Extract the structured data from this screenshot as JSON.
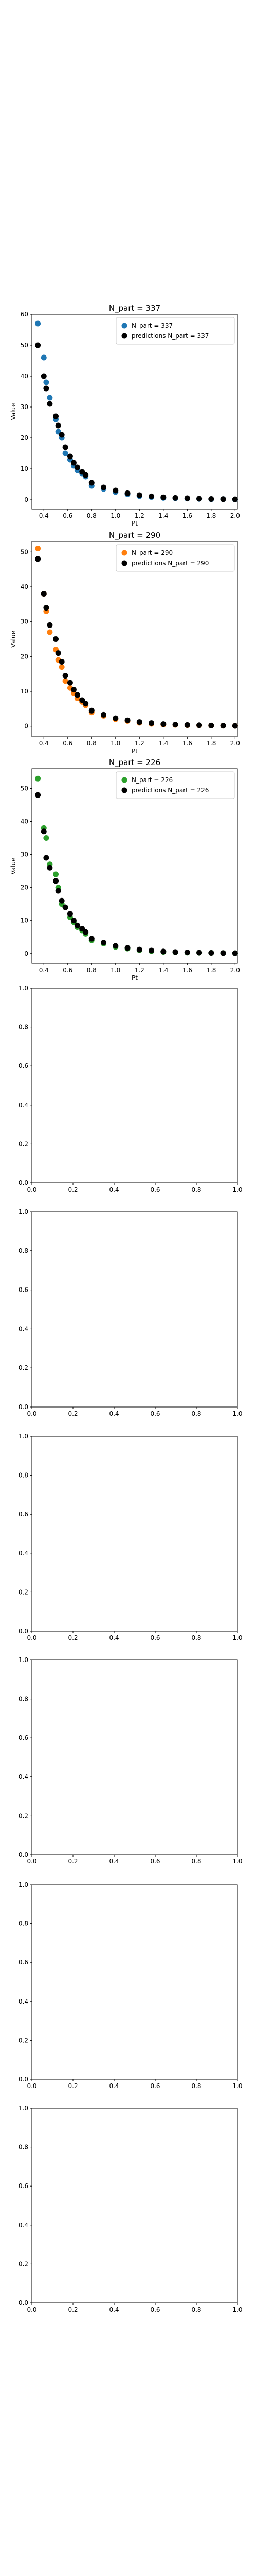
{
  "chart_data": [
    {
      "type": "scatter",
      "title": "N_part = 337",
      "xlabel": "Pt",
      "ylabel": "Value",
      "xlim": [
        0.3,
        2.02
      ],
      "ylim": [
        -3,
        60
      ],
      "xticks": [
        0.4,
        0.6,
        0.8,
        1.0,
        1.2,
        1.4,
        1.6,
        1.8,
        2.0
      ],
      "xtick_labels": [
        "0.4",
        "0.6",
        "0.8",
        "1.0",
        "1.2",
        "1.4",
        "1.6",
        "1.8",
        "2.0"
      ],
      "yticks": [
        0,
        10,
        20,
        30,
        40,
        50,
        60
      ],
      "ytick_labels": [
        "0",
        "10",
        "20",
        "30",
        "40",
        "50",
        "60"
      ],
      "legend": "top-right",
      "series": [
        {
          "name": "N_part = 337",
          "color": "#1f77b4",
          "x": [
            0.35,
            0.4,
            0.42,
            0.45,
            0.5,
            0.52,
            0.55,
            0.58,
            0.62,
            0.65,
            0.68,
            0.72,
            0.75,
            0.8,
            0.9,
            1.0,
            1.1,
            1.2,
            1.3,
            1.4,
            1.5,
            1.6,
            1.7,
            1.8,
            1.9,
            2.0
          ],
          "y": [
            57,
            46,
            38,
            33,
            26,
            22,
            20,
            15,
            13,
            11,
            9.5,
            8.5,
            7.5,
            4.5,
            3.5,
            2.5,
            1.8,
            1.2,
            0.9,
            0.6,
            0.5,
            0.4,
            0.3,
            0.2,
            0.2,
            0.1
          ]
        },
        {
          "name": "predictions N_part = 337",
          "color": "#000000",
          "x": [
            0.35,
            0.4,
            0.42,
            0.45,
            0.5,
            0.52,
            0.55,
            0.58,
            0.62,
            0.65,
            0.68,
            0.72,
            0.75,
            0.8,
            0.9,
            1.0,
            1.1,
            1.2,
            1.3,
            1.4,
            1.5,
            1.6,
            1.7,
            1.8,
            1.9,
            2.0
          ],
          "y": [
            50,
            40,
            36,
            31,
            27,
            24,
            21,
            17,
            14,
            12,
            10.5,
            9,
            8,
            5.5,
            4,
            3,
            2.1,
            1.5,
            1.1,
            0.8,
            0.6,
            0.5,
            0.35,
            0.25,
            0.2,
            0.15
          ]
        }
      ]
    },
    {
      "type": "scatter",
      "title": "N_part = 290",
      "xlabel": "Pt",
      "ylabel": "Value",
      "xlim": [
        0.3,
        2.02
      ],
      "ylim": [
        -3,
        53
      ],
      "xticks": [
        0.4,
        0.6,
        0.8,
        1.0,
        1.2,
        1.4,
        1.6,
        1.8,
        2.0
      ],
      "xtick_labels": [
        "0.4",
        "0.6",
        "0.8",
        "1.0",
        "1.2",
        "1.4",
        "1.6",
        "1.8",
        "2.0"
      ],
      "yticks": [
        0,
        10,
        20,
        30,
        40,
        50
      ],
      "ytick_labels": [
        "0",
        "10",
        "20",
        "30",
        "40",
        "50"
      ],
      "legend": "top-right",
      "series": [
        {
          "name": "N_part = 290",
          "color": "#ff7f0e",
          "x": [
            0.35,
            0.4,
            0.42,
            0.45,
            0.5,
            0.52,
            0.55,
            0.58,
            0.62,
            0.65,
            0.68,
            0.72,
            0.75,
            0.8,
            0.9,
            1.0,
            1.1,
            1.2,
            1.3,
            1.4,
            1.5,
            1.6,
            1.7,
            1.8,
            1.9,
            2.0
          ],
          "y": [
            51,
            38,
            33,
            27,
            22,
            19,
            17,
            13,
            11,
            9.5,
            8,
            7,
            6,
            4,
            3,
            2,
            1.5,
            1,
            0.7,
            0.5,
            0.4,
            0.3,
            0.25,
            0.2,
            0.15,
            0.1
          ]
        },
        {
          "name": "predictions N_part = 290",
          "color": "#000000",
          "x": [
            0.35,
            0.4,
            0.42,
            0.45,
            0.5,
            0.52,
            0.55,
            0.58,
            0.62,
            0.65,
            0.68,
            0.72,
            0.75,
            0.8,
            0.9,
            1.0,
            1.1,
            1.2,
            1.3,
            1.4,
            1.5,
            1.6,
            1.7,
            1.8,
            1.9,
            2.0
          ],
          "y": [
            48,
            38,
            34,
            29,
            25,
            21,
            18.5,
            14.5,
            12.5,
            10.5,
            9,
            7.5,
            6.5,
            4.5,
            3.3,
            2.3,
            1.7,
            1.2,
            0.9,
            0.6,
            0.45,
            0.35,
            0.28,
            0.2,
            0.15,
            0.1
          ]
        }
      ]
    },
    {
      "type": "scatter",
      "title": "N_part = 226",
      "xlabel": "Pt",
      "ylabel": "Value",
      "xlim": [
        0.3,
        2.02
      ],
      "ylim": [
        -3,
        56
      ],
      "xticks": [
        0.4,
        0.6,
        0.8,
        1.0,
        1.2,
        1.4,
        1.6,
        1.8,
        2.0
      ],
      "xtick_labels": [
        "0.4",
        "0.6",
        "0.8",
        "1.0",
        "1.2",
        "1.4",
        "1.6",
        "1.8",
        "2.0"
      ],
      "yticks": [
        0,
        10,
        20,
        30,
        40,
        50
      ],
      "ytick_labels": [
        "0",
        "10",
        "20",
        "30",
        "40",
        "50"
      ],
      "legend": "top-right",
      "series": [
        {
          "name": "N_part = 226",
          "color": "#2ca02c",
          "x": [
            0.35,
            0.4,
            0.42,
            0.45,
            0.5,
            0.52,
            0.55,
            0.58,
            0.62,
            0.65,
            0.68,
            0.72,
            0.75,
            0.8,
            0.9,
            1.0,
            1.1,
            1.2,
            1.3,
            1.4,
            1.5,
            1.6,
            1.7,
            1.8,
            1.9,
            2.0
          ],
          "y": [
            53,
            38,
            35,
            27,
            24,
            20,
            15,
            14,
            11,
            9.5,
            8,
            7,
            6,
            4,
            3,
            2,
            1.5,
            1,
            0.7,
            0.5,
            0.4,
            0.3,
            0.25,
            0.2,
            0.15,
            0.1
          ]
        },
        {
          "name": "predictions N_part = 226",
          "color": "#000000",
          "x": [
            0.35,
            0.4,
            0.42,
            0.45,
            0.5,
            0.52,
            0.55,
            0.58,
            0.62,
            0.65,
            0.68,
            0.72,
            0.75,
            0.8,
            0.9,
            1.0,
            1.1,
            1.2,
            1.3,
            1.4,
            1.5,
            1.6,
            1.7,
            1.8,
            1.9,
            2.0
          ],
          "y": [
            48,
            37,
            29,
            26,
            22,
            19,
            16,
            14,
            12,
            10,
            8.5,
            7.5,
            6.5,
            4.5,
            3.3,
            2.3,
            1.7,
            1.2,
            0.9,
            0.6,
            0.45,
            0.35,
            0.28,
            0.2,
            0.15,
            0.1
          ]
        }
      ]
    },
    {
      "type": "scatter",
      "title": "",
      "xlabel": "",
      "ylabel": "",
      "xlim": [
        0,
        1
      ],
      "ylim": [
        0,
        1
      ],
      "xticks": [
        0,
        0.2,
        0.4,
        0.6,
        0.8,
        1.0
      ],
      "xtick_labels": [
        "0.0",
        "0.2",
        "0.4",
        "0.6",
        "0.8",
        "1.0"
      ],
      "yticks": [
        0,
        0.2,
        0.4,
        0.6,
        0.8,
        1.0
      ],
      "ytick_labels": [
        "0.0",
        "0.2",
        "0.4",
        "0.6",
        "0.8",
        "1.0"
      ],
      "series": []
    },
    {
      "type": "scatter",
      "title": "",
      "xlabel": "",
      "ylabel": "",
      "xlim": [
        0,
        1
      ],
      "ylim": [
        0,
        1
      ],
      "xticks": [
        0,
        0.2,
        0.4,
        0.6,
        0.8,
        1.0
      ],
      "xtick_labels": [
        "0.0",
        "0.2",
        "0.4",
        "0.6",
        "0.8",
        "1.0"
      ],
      "yticks": [
        0,
        0.2,
        0.4,
        0.6,
        0.8,
        1.0
      ],
      "ytick_labels": [
        "0.0",
        "0.2",
        "0.4",
        "0.6",
        "0.8",
        "1.0"
      ],
      "series": []
    },
    {
      "type": "scatter",
      "title": "",
      "xlabel": "",
      "ylabel": "",
      "xlim": [
        0,
        1
      ],
      "ylim": [
        0,
        1
      ],
      "xticks": [
        0,
        0.2,
        0.4,
        0.6,
        0.8,
        1.0
      ],
      "xtick_labels": [
        "0.0",
        "0.2",
        "0.4",
        "0.6",
        "0.8",
        "1.0"
      ],
      "yticks": [
        0,
        0.2,
        0.4,
        0.6,
        0.8,
        1.0
      ],
      "ytick_labels": [
        "0.0",
        "0.2",
        "0.4",
        "0.6",
        "0.8",
        "1.0"
      ],
      "series": []
    },
    {
      "type": "scatter",
      "title": "",
      "xlabel": "",
      "ylabel": "",
      "xlim": [
        0,
        1
      ],
      "ylim": [
        0,
        1
      ],
      "xticks": [
        0,
        0.2,
        0.4,
        0.6,
        0.8,
        1.0
      ],
      "xtick_labels": [
        "0.0",
        "0.2",
        "0.4",
        "0.6",
        "0.8",
        "1.0"
      ],
      "yticks": [
        0,
        0.2,
        0.4,
        0.6,
        0.8,
        1.0
      ],
      "ytick_labels": [
        "0.0",
        "0.2",
        "0.4",
        "0.6",
        "0.8",
        "1.0"
      ],
      "series": []
    },
    {
      "type": "scatter",
      "title": "",
      "xlabel": "",
      "ylabel": "",
      "xlim": [
        0,
        1
      ],
      "ylim": [
        0,
        1
      ],
      "xticks": [
        0,
        0.2,
        0.4,
        0.6,
        0.8,
        1.0
      ],
      "xtick_labels": [
        "0.0",
        "0.2",
        "0.4",
        "0.6",
        "0.8",
        "1.0"
      ],
      "yticks": [
        0,
        0.2,
        0.4,
        0.6,
        0.8,
        1.0
      ],
      "ytick_labels": [
        "0.0",
        "0.2",
        "0.4",
        "0.6",
        "0.8",
        "1.0"
      ],
      "series": []
    },
    {
      "type": "scatter",
      "title": "",
      "xlabel": "",
      "ylabel": "",
      "xlim": [
        0,
        1
      ],
      "ylim": [
        0,
        1
      ],
      "xticks": [
        0,
        0.2,
        0.4,
        0.6,
        0.8,
        1.0
      ],
      "xtick_labels": [
        "0.0",
        "0.2",
        "0.4",
        "0.6",
        "0.8",
        "1.0"
      ],
      "yticks": [
        0,
        0.2,
        0.4,
        0.6,
        0.8,
        1.0
      ],
      "ytick_labels": [
        "0.0",
        "0.2",
        "0.4",
        "0.6",
        "0.8",
        "1.0"
      ],
      "series": []
    }
  ]
}
